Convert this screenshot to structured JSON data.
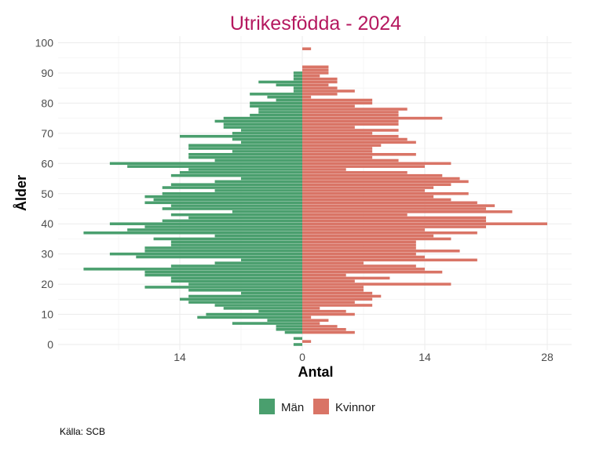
{
  "chart_data": {
    "type": "bar",
    "orientation": "horizontal",
    "title": "Utrikesfödda - 2024",
    "xlabel": "Antal",
    "ylabel": "Ålder",
    "caption": "Källa: SCB",
    "xlim": [
      -28,
      29
    ],
    "ylim": [
      0,
      100
    ],
    "x_ticks": [
      -14,
      0,
      14,
      28
    ],
    "x_tick_labels": [
      "14",
      "0",
      "14",
      "28"
    ],
    "y_ticks": [
      0,
      10,
      20,
      30,
      40,
      50,
      60,
      70,
      80,
      90,
      100
    ],
    "grid": true,
    "legend_position": "bottom",
    "colors": {
      "Män": "#4a9f6e",
      "Kvinnor": "#d97466",
      "title": "#b5185f"
    },
    "ages": [
      0,
      1,
      2,
      3,
      4,
      5,
      6,
      7,
      8,
      9,
      10,
      11,
      12,
      13,
      14,
      15,
      16,
      17,
      18,
      19,
      20,
      21,
      22,
      23,
      24,
      25,
      26,
      27,
      28,
      29,
      30,
      31,
      32,
      33,
      34,
      35,
      36,
      37,
      38,
      39,
      40,
      41,
      42,
      43,
      44,
      45,
      46,
      47,
      48,
      49,
      50,
      51,
      52,
      53,
      54,
      55,
      56,
      57,
      58,
      59,
      60,
      61,
      62,
      63,
      64,
      65,
      66,
      67,
      68,
      69,
      70,
      71,
      72,
      73,
      74,
      75,
      76,
      77,
      78,
      79,
      80,
      81,
      82,
      83,
      84,
      85,
      86,
      87,
      88,
      89,
      90,
      91,
      92,
      93,
      94,
      95,
      96,
      97,
      98,
      99,
      100
    ],
    "series": [
      {
        "name": "Män",
        "values": [
          1,
          0,
          1,
          0,
          2,
          3,
          3,
          8,
          4,
          12,
          11,
          5,
          9,
          10,
          13,
          14,
          13,
          7,
          13,
          18,
          13,
          15,
          15,
          18,
          18,
          25,
          15,
          10,
          7,
          19,
          22,
          18,
          18,
          15,
          15,
          17,
          10,
          25,
          20,
          18,
          22,
          16,
          13,
          15,
          8,
          16,
          15,
          18,
          17,
          18,
          16,
          10,
          16,
          15,
          10,
          7,
          15,
          14,
          13,
          20,
          22,
          10,
          13,
          13,
          8,
          13,
          13,
          7,
          8,
          14,
          8,
          7,
          9,
          9,
          10,
          9,
          6,
          5,
          5,
          6,
          6,
          3,
          4,
          6,
          1,
          1,
          3,
          5,
          1,
          1,
          1,
          0,
          0,
          0,
          0,
          0,
          0,
          0,
          0,
          0,
          0
        ]
      },
      {
        "name": "Kvinnor",
        "values": [
          0,
          1,
          0,
          0,
          6,
          5,
          4,
          2,
          3,
          1,
          6,
          5,
          2,
          8,
          6,
          8,
          9,
          8,
          7,
          7,
          17,
          6,
          10,
          5,
          16,
          14,
          13,
          7,
          20,
          14,
          13,
          18,
          13,
          13,
          13,
          17,
          15,
          20,
          14,
          21,
          28,
          21,
          21,
          12,
          24,
          21,
          22,
          20,
          17,
          15,
          19,
          14,
          15,
          17,
          19,
          18,
          16,
          12,
          5,
          14,
          17,
          11,
          8,
          13,
          8,
          8,
          9,
          13,
          12,
          11,
          8,
          11,
          6,
          11,
          11,
          16,
          11,
          11,
          12,
          6,
          8,
          8,
          1,
          4,
          6,
          4,
          3,
          4,
          4,
          2,
          3,
          3,
          3,
          0,
          0,
          0,
          0,
          0,
          1,
          0,
          0
        ]
      }
    ]
  }
}
